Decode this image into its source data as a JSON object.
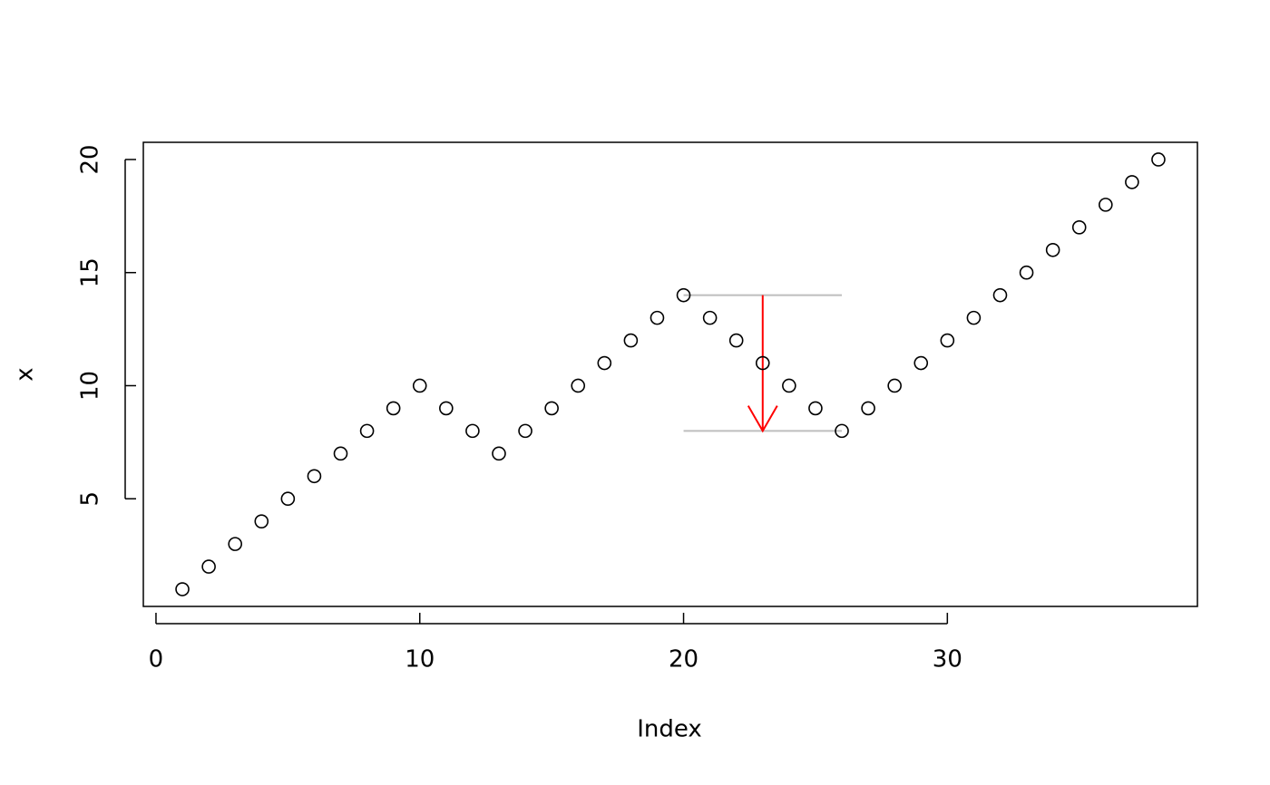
{
  "chart_data": {
    "type": "scatter",
    "x_label": "Index",
    "y_label": "x",
    "x": [
      1,
      2,
      3,
      4,
      5,
      6,
      7,
      8,
      9,
      10,
      11,
      12,
      13,
      14,
      15,
      16,
      17,
      18,
      19,
      20,
      21,
      22,
      23,
      24,
      25,
      26,
      27,
      28,
      29,
      30,
      31,
      32,
      33,
      34,
      35,
      36,
      37,
      38
    ],
    "values": [
      1,
      2,
      3,
      4,
      5,
      6,
      7,
      8,
      9,
      10,
      9,
      8,
      7,
      8,
      9,
      10,
      11,
      12,
      13,
      14,
      13,
      12,
      11,
      10,
      9,
      8,
      9,
      10,
      11,
      12,
      13,
      14,
      15,
      16,
      17,
      18,
      19,
      20
    ],
    "color": "#000000",
    "xlim": [
      -0.48,
      39.48
    ],
    "ylim": [
      0.24,
      20.76
    ],
    "xticks": [
      0,
      10,
      20,
      30
    ],
    "yticks": [
      5,
      10,
      15,
      20
    ],
    "segments": [
      {
        "x": [
          20,
          26
        ],
        "y": [
          14,
          14
        ],
        "color": "#bebebe"
      },
      {
        "x": [
          20,
          26
        ],
        "y": [
          8,
          8
        ],
        "color": "#bebebe"
      }
    ],
    "arrows": [
      {
        "x": [
          23,
          23
        ],
        "y": [
          14,
          8
        ],
        "color": "#ff0000"
      }
    ]
  }
}
